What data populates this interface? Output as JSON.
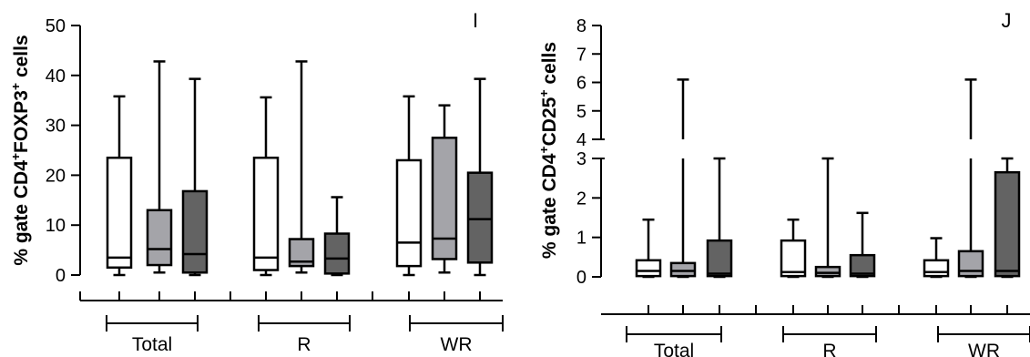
{
  "colors": {
    "white": "#ffffff",
    "light_gray": "#a4a4a9",
    "dark_gray": "#636363",
    "stroke": "#000000"
  },
  "chart_data": [
    {
      "panel_label": "I",
      "type": "boxplot",
      "ylabel": "% gate CD4+FOXP3+ cells",
      "ylabel_parts": {
        "a": "% gate CD4",
        "b": "+",
        "c": "FOXP3",
        "d": "+",
        "e": " cells"
      },
      "ylim": [
        0,
        50
      ],
      "yticks": [
        "0",
        "10",
        "20",
        "30",
        "40",
        "50"
      ],
      "groups": [
        "Total",
        "R",
        "WR"
      ],
      "series_colors": [
        "white",
        "light_gray",
        "dark_gray"
      ],
      "boxes": [
        {
          "group": "Total",
          "min": 0.0,
          "q1": 1.5,
          "median": 3.5,
          "q3": 23.5,
          "max": 35.8
        },
        {
          "group": "Total",
          "min": 0.5,
          "q1": 2.0,
          "median": 5.2,
          "q3": 13.0,
          "max": 42.8
        },
        {
          "group": "Total",
          "min": 0.0,
          "q1": 0.5,
          "median": 4.2,
          "q3": 16.8,
          "max": 39.3
        },
        {
          "group": "R",
          "min": 0.0,
          "q1": 1.0,
          "median": 3.5,
          "q3": 23.5,
          "max": 35.6
        },
        {
          "group": "R",
          "min": 0.5,
          "q1": 1.8,
          "median": 2.7,
          "q3": 7.2,
          "max": 42.8
        },
        {
          "group": "R",
          "min": 0.0,
          "q1": 0.3,
          "median": 3.3,
          "q3": 8.3,
          "max": 15.6
        },
        {
          "group": "WR",
          "min": 0.0,
          "q1": 1.8,
          "median": 6.5,
          "q3": 23.0,
          "max": 35.8
        },
        {
          "group": "WR",
          "min": 0.5,
          "q1": 3.2,
          "median": 7.3,
          "q3": 27.5,
          "max": 34.0
        },
        {
          "group": "WR",
          "min": 0.0,
          "q1": 2.5,
          "median": 11.2,
          "q3": 20.5,
          "max": 39.3
        }
      ]
    },
    {
      "panel_label": "J",
      "type": "boxplot",
      "ylabel": "% gate CD4+CD25+ cells",
      "ylabel_parts": {
        "a": "% gate CD4",
        "b": "+",
        "c": "CD25",
        "d": "+",
        "e": " cells"
      },
      "ylim": [
        0,
        8
      ],
      "axis_break": [
        3,
        4
      ],
      "yticks_lower": [
        "0",
        "1",
        "2",
        "3"
      ],
      "yticks_upper": [
        "4",
        "5",
        "6",
        "7",
        "8"
      ],
      "groups": [
        "Total",
        "R",
        "WR"
      ],
      "series_colors": [
        "white",
        "light_gray",
        "dark_gray"
      ],
      "boxes": [
        {
          "group": "Total",
          "min": 0.0,
          "q1": 0.02,
          "median": 0.15,
          "q3": 0.42,
          "max": 1.45
        },
        {
          "group": "Total",
          "min": 0.0,
          "q1": 0.02,
          "median": 0.15,
          "q3": 0.35,
          "max": 6.1
        },
        {
          "group": "Total",
          "min": 0.0,
          "q1": 0.02,
          "median": 0.08,
          "q3": 0.92,
          "max": 3.0
        },
        {
          "group": "R",
          "min": 0.0,
          "q1": 0.02,
          "median": 0.12,
          "q3": 0.92,
          "max": 1.45
        },
        {
          "group": "R",
          "min": 0.0,
          "q1": 0.02,
          "median": 0.1,
          "q3": 0.25,
          "max": 3.0
        },
        {
          "group": "R",
          "min": 0.0,
          "q1": 0.02,
          "median": 0.08,
          "q3": 0.55,
          "max": 1.62
        },
        {
          "group": "WR",
          "min": 0.0,
          "q1": 0.02,
          "median": 0.12,
          "q3": 0.42,
          "max": 0.98
        },
        {
          "group": "WR",
          "min": 0.0,
          "q1": 0.02,
          "median": 0.15,
          "q3": 0.65,
          "max": 6.1
        },
        {
          "group": "WR",
          "min": 0.0,
          "q1": 0.02,
          "median": 0.15,
          "q3": 2.65,
          "max": 3.0
        }
      ]
    }
  ]
}
